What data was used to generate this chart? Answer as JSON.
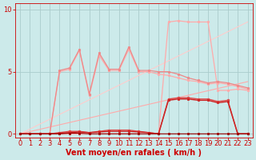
{
  "background_color": "#cceaea",
  "grid_color": "#aacccc",
  "xlabel": "Vent moyen/en rafales ( km/h )",
  "xlabel_color": "#cc0000",
  "xlabel_fontsize": 7,
  "tick_color": "#cc0000",
  "tick_fontsize": 6,
  "yticks": [
    0,
    5,
    10
  ],
  "ylim": [
    -0.3,
    10.5
  ],
  "xlim": [
    -0.5,
    23.5
  ],
  "xticks": [
    0,
    1,
    2,
    3,
    4,
    5,
    6,
    7,
    8,
    9,
    10,
    11,
    12,
    13,
    14,
    15,
    16,
    17,
    18,
    19,
    20,
    21,
    22,
    23
  ],
  "lines": [
    {
      "x": [
        0,
        23
      ],
      "y": [
        0,
        4.2
      ],
      "color": "#ffaaaa",
      "lw": 0.8,
      "marker": null
    },
    {
      "x": [
        0,
        23
      ],
      "y": [
        0,
        9.0
      ],
      "color": "#ffcccc",
      "lw": 0.8,
      "marker": null
    },
    {
      "x": [
        0,
        1,
        2,
        3,
        4,
        5,
        6,
        7,
        8,
        9,
        10,
        11,
        12,
        13,
        14,
        15,
        16,
        17,
        18,
        19,
        20,
        21,
        22,
        23
      ],
      "y": [
        0,
        0,
        0,
        0,
        5.0,
        5.2,
        6.7,
        3.1,
        6.3,
        5.1,
        5.1,
        6.8,
        5.0,
        5.0,
        4.8,
        4.7,
        4.5,
        4.3,
        4.2,
        4.0,
        4.1,
        4.0,
        3.8,
        3.6
      ],
      "color": "#ffaaaa",
      "lw": 0.9,
      "marker": "o",
      "ms": 1.8
    },
    {
      "x": [
        0,
        1,
        2,
        3,
        4,
        5,
        6,
        7,
        8,
        9,
        10,
        11,
        12,
        13,
        14,
        15,
        16,
        17,
        18,
        19,
        20,
        21,
        22,
        23
      ],
      "y": [
        0,
        0,
        0,
        0,
        0,
        0,
        0,
        0,
        0,
        0,
        0,
        0,
        0,
        0,
        0,
        9.0,
        9.1,
        9.0,
        9.0,
        9.0,
        3.5,
        3.5,
        3.6,
        3.5
      ],
      "color": "#ffaaaa",
      "lw": 0.9,
      "marker": "o",
      "ms": 1.8
    },
    {
      "x": [
        0,
        1,
        2,
        3,
        4,
        5,
        6,
        7,
        8,
        9,
        10,
        11,
        12,
        13,
        14,
        15,
        16,
        17,
        18,
        19,
        20,
        21,
        22,
        23
      ],
      "y": [
        0,
        0,
        0,
        0,
        5.1,
        5.3,
        6.8,
        3.2,
        6.5,
        5.2,
        5.2,
        7.0,
        5.1,
        5.1,
        5.0,
        5.0,
        4.8,
        4.5,
        4.3,
        4.1,
        4.2,
        4.1,
        3.9,
        3.7
      ],
      "color": "#ee8888",
      "lw": 0.9,
      "marker": "o",
      "ms": 1.8
    },
    {
      "x": [
        0,
        1,
        2,
        3,
        4,
        5,
        6,
        7,
        8,
        9,
        10,
        11,
        12,
        13,
        14,
        15,
        16,
        17,
        18,
        19,
        20,
        21,
        22,
        23
      ],
      "y": [
        0,
        0,
        0,
        0,
        0.1,
        0.2,
        0.2,
        0.1,
        0.2,
        0.3,
        0.3,
        0.3,
        0.2,
        0.1,
        0.0,
        2.8,
        2.9,
        2.9,
        2.8,
        2.8,
        2.6,
        2.7,
        0.0,
        0.0
      ],
      "color": "#dd4444",
      "lw": 1.0,
      "marker": "o",
      "ms": 2.0
    },
    {
      "x": [
        0,
        1,
        2,
        3,
        4,
        5,
        6,
        7,
        8,
        9,
        10,
        11,
        12,
        13,
        14,
        15,
        16,
        17,
        18,
        19,
        20,
        21,
        22,
        23
      ],
      "y": [
        0,
        0,
        0,
        0,
        0.05,
        0.1,
        0.15,
        0.1,
        0.15,
        0.2,
        0.2,
        0.2,
        0.15,
        0.1,
        0.0,
        2.7,
        2.8,
        2.8,
        2.7,
        2.7,
        2.5,
        2.6,
        0.0,
        0.0
      ],
      "color": "#cc2222",
      "lw": 1.0,
      "marker": "s",
      "ms": 2.0
    },
    {
      "x": [
        0,
        1,
        2,
        3,
        4,
        5,
        6,
        7,
        8,
        9,
        10,
        11,
        12,
        13,
        14,
        15,
        16,
        17,
        18,
        19,
        20,
        21,
        22,
        23
      ],
      "y": [
        0,
        0,
        0,
        0,
        0,
        0.05,
        0.05,
        0.0,
        0.0,
        0.0,
        0.0,
        0.0,
        0.0,
        0.0,
        0.0,
        0.0,
        0.0,
        0.0,
        0.0,
        0.0,
        0.0,
        0.0,
        0.0,
        0.0
      ],
      "color": "#990000",
      "lw": 0.8,
      "marker": "s",
      "ms": 1.5
    }
  ]
}
